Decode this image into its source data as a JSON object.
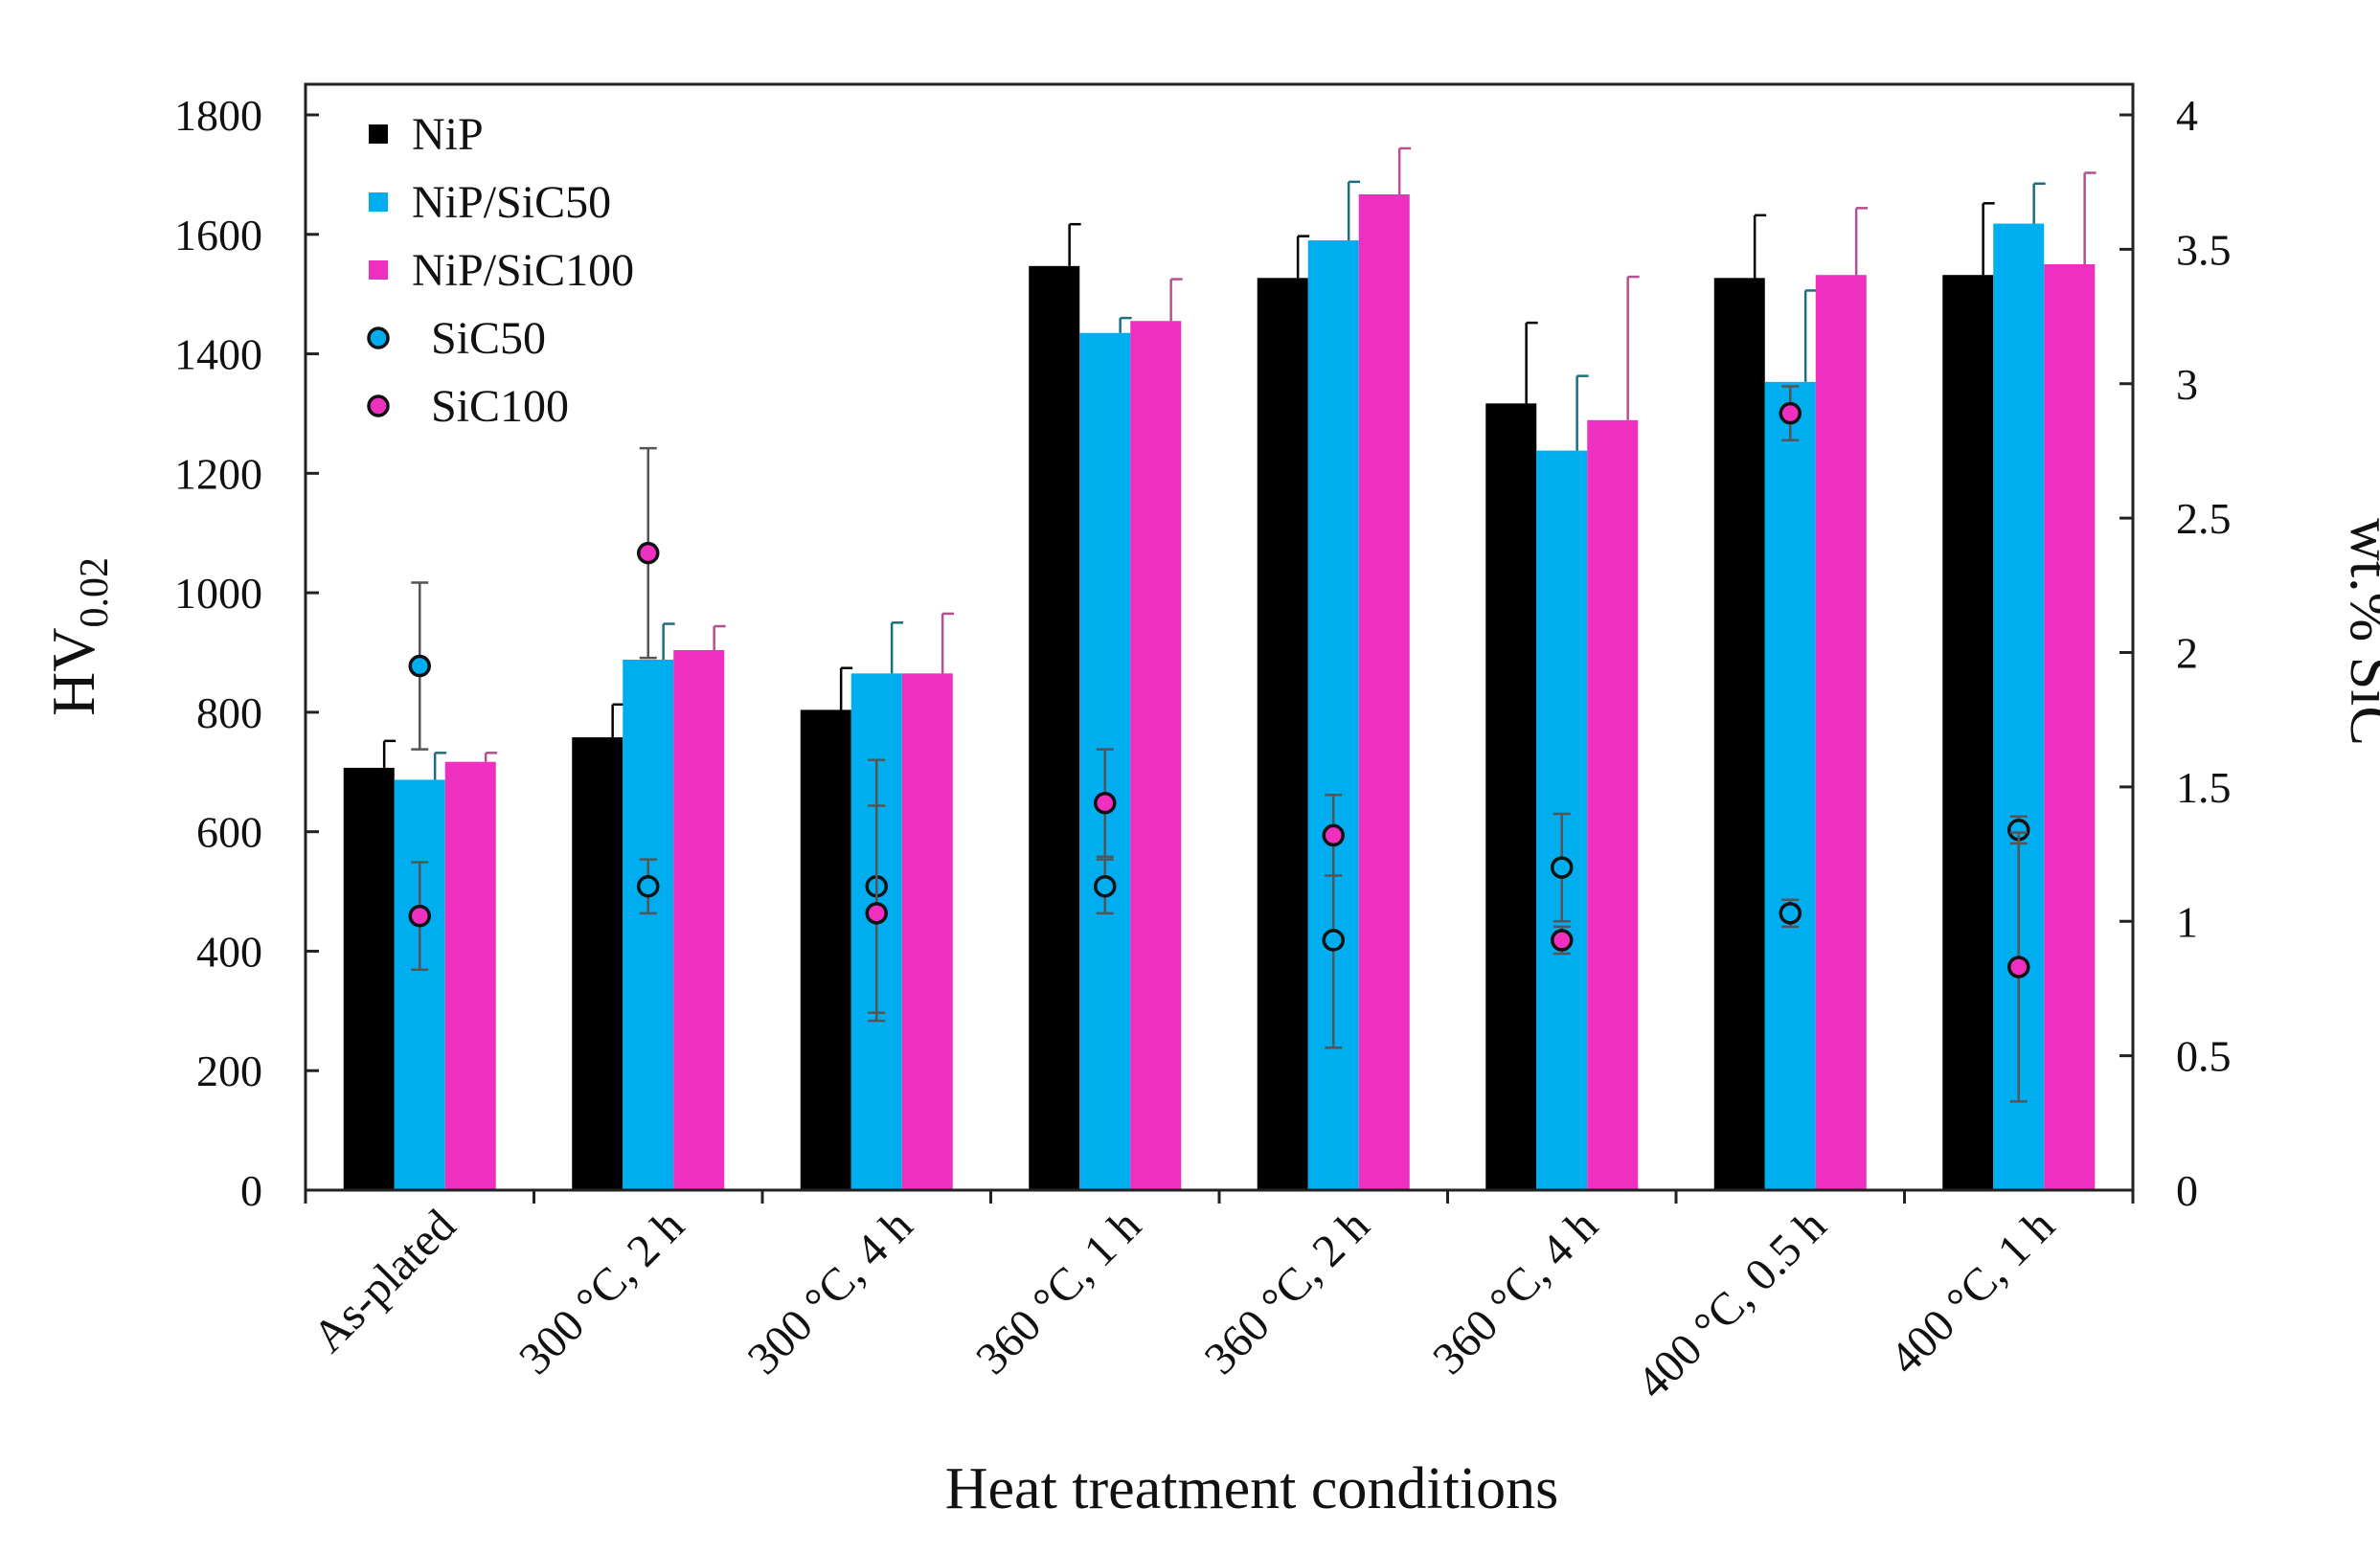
{
  "chart_data": {
    "type": "bar",
    "title": "",
    "xlabel": "Heat treatment conditions",
    "ylabel": "HV",
    "ylabel_sub": "0.02",
    "y2label": "wt.% SiC",
    "ylim": [
      0,
      1800
    ],
    "y2lim": [
      0,
      4
    ],
    "yticks": [
      0,
      200,
      400,
      600,
      800,
      1000,
      1200,
      1400,
      1600,
      1800
    ],
    "y2ticks": [
      "0",
      "0.5",
      "1",
      "1.5",
      "2",
      "2.5",
      "3",
      "3.5",
      "4"
    ],
    "grid": false,
    "legend_position": "top-left",
    "categories": [
      "As-plated",
      "300 °C, 2 h",
      "300 °C, 4 h",
      "360 °C, 1 h",
      "360 °C, 2 h",
      "360 °C, 4 h",
      "400 °C, 0.5 h",
      "400 °C, 1 h"
    ],
    "series": [
      {
        "name": "NiP",
        "kind": "bar",
        "axis": "left",
        "color": "#000000",
        "errcolor": "#000000",
        "values": [
          707,
          758,
          804,
          1547,
          1527,
          1317,
          1527,
          1532
        ],
        "errors": [
          45,
          55,
          70,
          70,
          70,
          135,
          105,
          120
        ]
      },
      {
        "name": "NiP/SiC50",
        "kind": "bar",
        "axis": "left",
        "color": "#00aeef",
        "errcolor": "#1c6f80",
        "values": [
          687,
          888,
          865,
          1435,
          1590,
          1238,
          1353,
          1618
        ],
        "errors": [
          45,
          60,
          85,
          25,
          98,
          125,
          153,
          67
        ]
      },
      {
        "name": "NiP/SiC100",
        "kind": "bar",
        "axis": "left",
        "color": "#ee2fc0",
        "errcolor": "#b4508e",
        "values": [
          717,
          904,
          865,
          1455,
          1667,
          1289,
          1532,
          1550
        ],
        "errors": [
          15,
          40,
          100,
          70,
          77,
          240,
          112,
          153
        ]
      },
      {
        "name": "SiC50",
        "kind": "scatter",
        "axis": "right",
        "color": "#00aeef",
        "values": [
          1.95,
          1.13,
          1.13,
          1.13,
          0.93,
          1.2,
          1.03,
          1.34
        ],
        "errors": [
          0.31,
          0.1,
          0.47,
          0.1,
          0.4,
          0.2,
          0.05,
          0.05
        ]
      },
      {
        "name": "SiC100",
        "kind": "scatter",
        "axis": "right",
        "color": "#ee2fc0",
        "values": [
          1.02,
          2.37,
          1.03,
          1.44,
          1.32,
          0.93,
          2.89,
          0.83
        ],
        "errors": [
          0.2,
          0.39,
          0.4,
          0.2,
          0.15,
          0.05,
          0.1,
          0.5
        ]
      }
    ]
  }
}
